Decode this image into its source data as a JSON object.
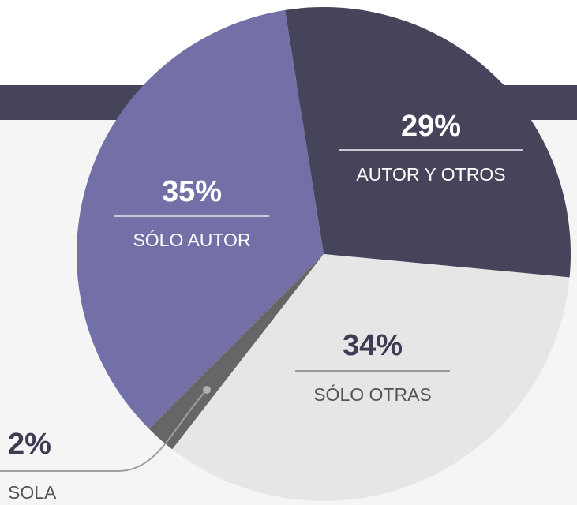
{
  "chart_data": {
    "type": "pie",
    "categories": [
      "AUTOR Y OTROS",
      "SÓLO OTRAS",
      "SOLA",
      "SÓLO AUTOR"
    ],
    "values": [
      29,
      34,
      2,
      35
    ],
    "value_labels": [
      "29%",
      "34%",
      "2%",
      "35%"
    ],
    "colors": [
      "#46445a",
      "#e6e6e6",
      "#666666",
      "#7370a8"
    ]
  }
}
